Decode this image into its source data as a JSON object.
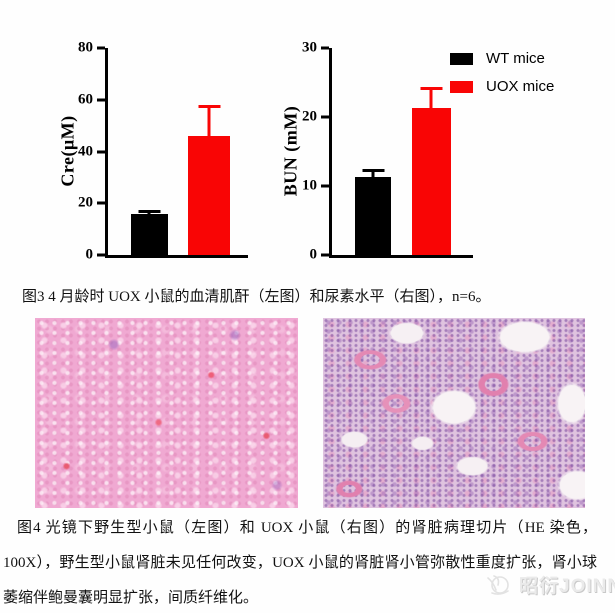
{
  "figure3": {
    "caption": "图3 4 月龄时 UOX 小鼠的血清肌酐（左图）和尿素水平（右图），n=6。",
    "legend": [
      {
        "label": "WT mice",
        "color": "#000000"
      },
      {
        "label": "UOX mice",
        "color": "#f90505"
      }
    ]
  },
  "chart_data": [
    {
      "type": "bar",
      "title": "",
      "xlabel": "",
      "ylabel": "Cre(μM)",
      "ylim": [
        0,
        80
      ],
      "yticks": [
        0,
        20,
        40,
        60,
        80
      ],
      "grid": false,
      "legend_position": "none",
      "categories": [
        "WT mice",
        "UOX mice"
      ],
      "series": [
        {
          "name": "serum creatinine",
          "values": [
            16,
            46
          ],
          "errors_plus": [
            1.5,
            12
          ],
          "colors": [
            "#000000",
            "#f90505"
          ]
        }
      ]
    },
    {
      "type": "bar",
      "title": "",
      "xlabel": "",
      "ylabel": "BUN (mM)",
      "ylim": [
        0,
        30
      ],
      "yticks": [
        0,
        10,
        20,
        30
      ],
      "grid": false,
      "legend_position": "top-right",
      "categories": [
        "WT mice",
        "UOX mice"
      ],
      "series": [
        {
          "name": "blood urea nitrogen",
          "values": [
            11.3,
            21.3
          ],
          "errors_plus": [
            1.1,
            3.1
          ],
          "colors": [
            "#000000",
            "#f90505"
          ]
        }
      ]
    }
  ],
  "figure4": {
    "caption": "图4 光镜下野生型小鼠（左图）和 UOX 小鼠（右图）的肾脏病理切片（HE 染色，100X），野生型小鼠肾脏未见任何改变，UOX 小鼠的肾脏肾小管弥散性重度扩张，肾小球萎缩伴鲍曼囊明显扩张，间质纤维化。",
    "panels": [
      {
        "name": "wt-kidney-histology"
      },
      {
        "name": "uox-kidney-histology"
      }
    ]
  },
  "watermark": {
    "text": "昭衍JOINN",
    "color": "#eaeaea"
  }
}
